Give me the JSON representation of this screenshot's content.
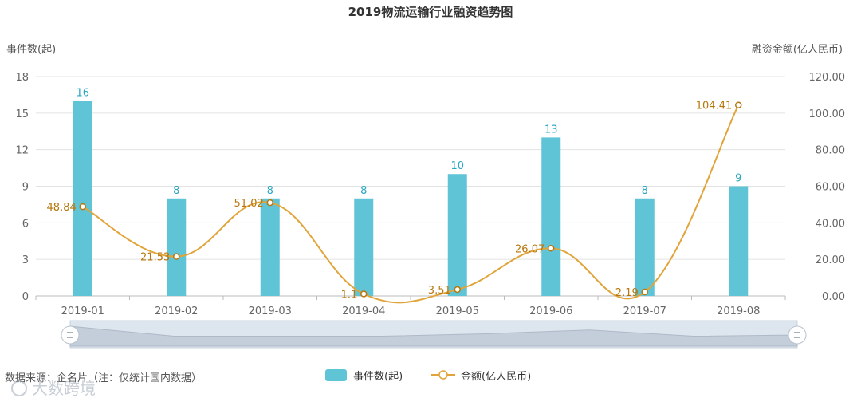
{
  "chart_data": {
    "type": "bar",
    "title": "2019物流运输行业融资趋势图",
    "categories": [
      "2019-01",
      "2019-02",
      "2019-03",
      "2019-04",
      "2019-05",
      "2019-06",
      "2019-07",
      "2019-08"
    ],
    "series": [
      {
        "name": "事件数(起)",
        "type": "bar",
        "axis": "left",
        "color": "#5fc4d6",
        "values": [
          16,
          8,
          8,
          8,
          10,
          13,
          8,
          9
        ]
      },
      {
        "name": "金额(亿人民币)",
        "type": "line",
        "axis": "right",
        "color": "#e0a43a",
        "values": [
          48.84,
          21.53,
          51.02,
          1.1,
          3.51,
          26.07,
          2.19,
          104.41
        ],
        "labels": [
          "48.84",
          "21.53",
          "51.02",
          "1.1",
          "3.51",
          "26.07",
          "2.19",
          "104.41"
        ]
      }
    ],
    "left_axis": {
      "label": "事件数(起)",
      "ylim": [
        0,
        18
      ],
      "ticks": [
        "0",
        "3",
        "6",
        "9",
        "12",
        "15",
        "18"
      ]
    },
    "right_axis": {
      "label": "融资金额(亿人民币)",
      "ylim": [
        0,
        120
      ],
      "ticks": [
        "0.00",
        "20.00",
        "40.00",
        "60.00",
        "80.00",
        "100.00",
        "120.00"
      ]
    },
    "grid": true,
    "legend_position": "bottom-center",
    "zoom_slider": true
  },
  "footer": {
    "source": "数据来源：企名片（注：仅统计国内数据）",
    "watermark": "大数跨境"
  },
  "colors": {
    "bar": "#5fc4d6",
    "line": "#e0a43a",
    "bar_label": "#2aa6c2",
    "line_label": "#b7770c",
    "grid": "#e3e3e3"
  }
}
